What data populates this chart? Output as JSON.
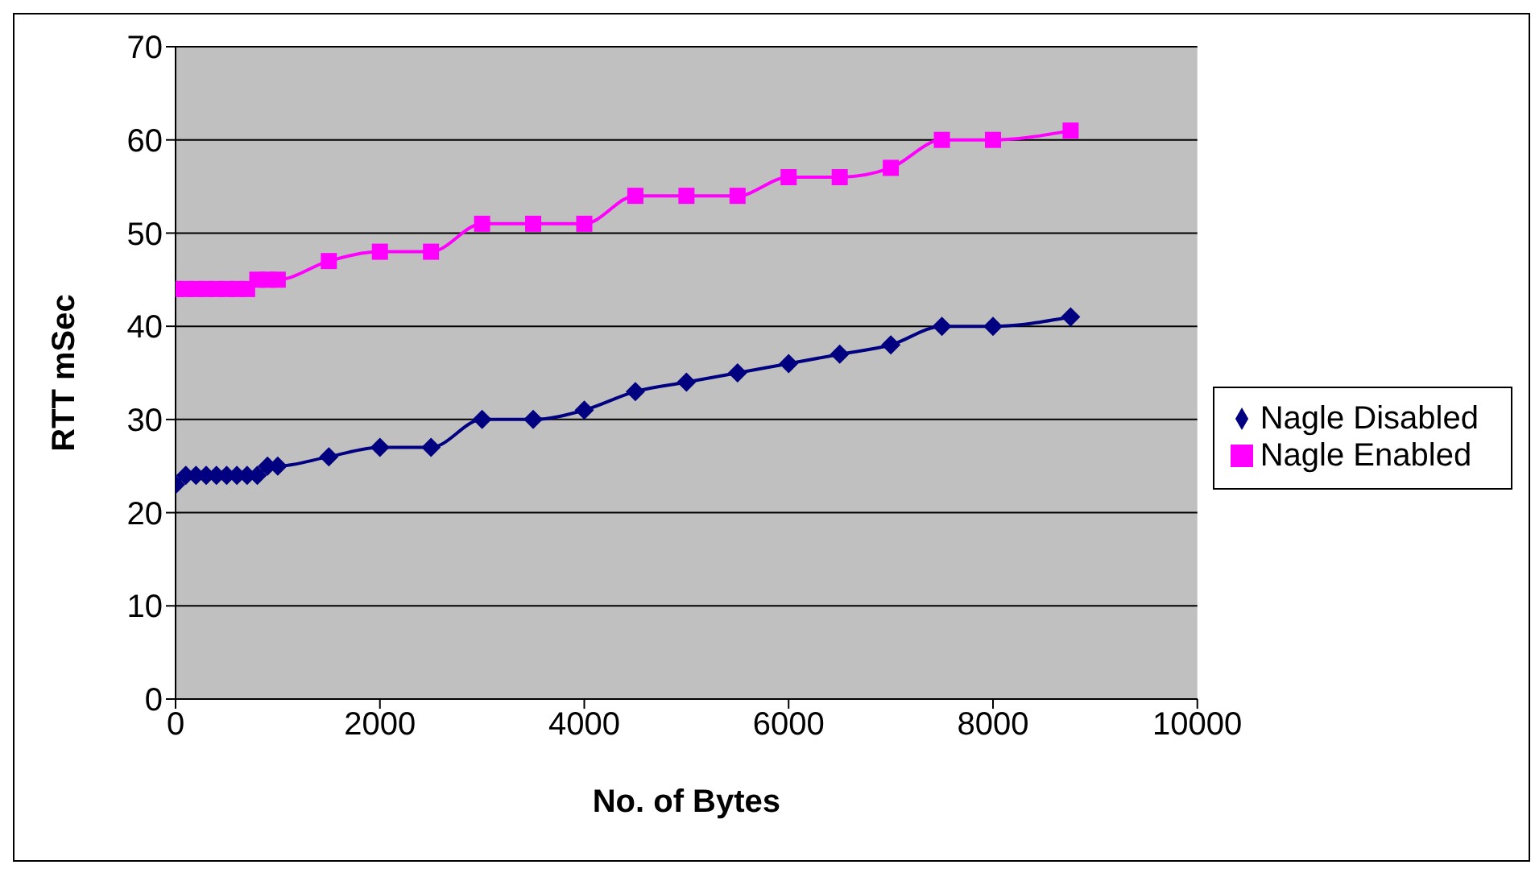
{
  "chart_data": {
    "type": "line",
    "xlabel": "No. of Bytes",
    "ylabel": "RTT mSec",
    "x": [
      0,
      100,
      200,
      300,
      400,
      500,
      600,
      700,
      800,
      900,
      1000,
      1500,
      2000,
      2500,
      3000,
      3500,
      4000,
      4500,
      5000,
      5500,
      6000,
      6500,
      7000,
      7500,
      8000,
      8760
    ],
    "series": [
      {
        "name": "Nagle Disabled",
        "color": "#000080",
        "marker": "diamond",
        "values": [
          23,
          24,
          24,
          24,
          24,
          24,
          24,
          24,
          24,
          25,
          25,
          26,
          27,
          27,
          30,
          30,
          31,
          33,
          34,
          35,
          36,
          37,
          38,
          40,
          40,
          41
        ]
      },
      {
        "name": "Nagle Enabled",
        "color": "#ff00ff",
        "marker": "square",
        "values": [
          44,
          44,
          44,
          44,
          44,
          44,
          44,
          44,
          45,
          45,
          45,
          47,
          48,
          48,
          51,
          51,
          51,
          54,
          54,
          54,
          56,
          56,
          57,
          60,
          60,
          61
        ]
      }
    ],
    "xlim": [
      0,
      10000
    ],
    "xticks": [
      0,
      2000,
      4000,
      6000,
      8000,
      10000
    ],
    "ylim": [
      0,
      70
    ],
    "yticks": [
      0,
      10,
      20,
      30,
      40,
      50,
      60,
      70
    ],
    "grid": "y",
    "legend": "right"
  }
}
